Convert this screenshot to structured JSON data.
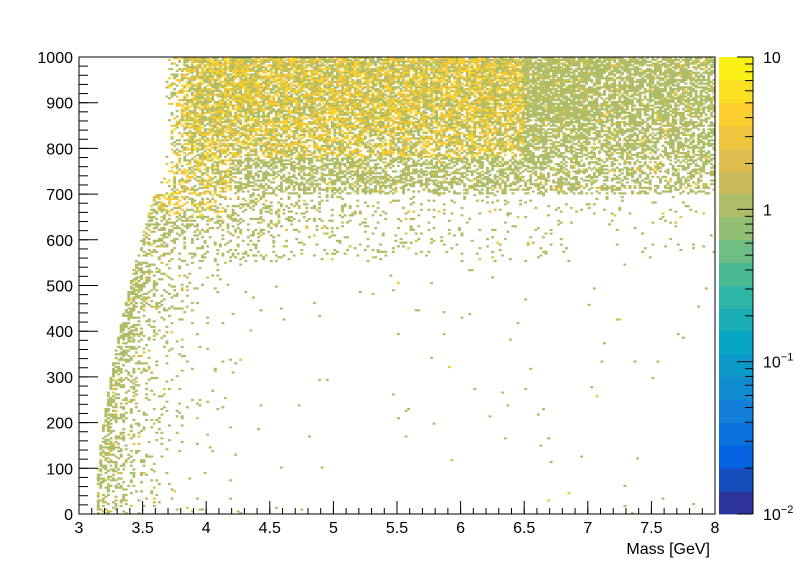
{
  "chart_data": {
    "type": "heatmap",
    "title": "",
    "xlabel": "Mass [GeV]",
    "ylabel": "",
    "xlim": [
      3,
      8
    ],
    "ylim": [
      0,
      1000
    ],
    "x_major_ticks": [
      3,
      3.5,
      4,
      4.5,
      5,
      5.5,
      6,
      6.5,
      7,
      7.5,
      8
    ],
    "x_tick_labels": [
      "3",
      "3.5",
      "4",
      "4.5",
      "5",
      "5.5",
      "6",
      "6.5",
      "7",
      "7.5",
      "8"
    ],
    "y_major_ticks": [
      0,
      100,
      200,
      300,
      400,
      500,
      600,
      700,
      800,
      900,
      1000
    ],
    "y_tick_labels": [
      "0",
      "100",
      "200",
      "300",
      "400",
      "500",
      "600",
      "700",
      "800",
      "900",
      "1000"
    ],
    "z_scale": "log",
    "zlim": [
      0.01,
      10
    ],
    "z_tick_labels": [
      {
        "value": 0.01,
        "mantissa": "10",
        "exponent": "−2"
      },
      {
        "value": 0.1,
        "mantissa": "10",
        "exponent": "−1"
      },
      {
        "value": 1,
        "mantissa": "1",
        "exponent": ""
      },
      {
        "value": 10,
        "mantissa": "10",
        "exponent": ""
      }
    ],
    "colorbar_palette": [
      "#352a87",
      "#0363e1",
      "#1485d4",
      "#06a7c6",
      "#38b99e",
      "#92bf73",
      "#d9ba56",
      "#fcce2e",
      "#f9fb0e"
    ],
    "colorbar_levels": 20,
    "grid": false,
    "legend": "none",
    "density_description": {
      "x_bins": 250,
      "y_bins": 250,
      "typical_cell_content": [
        1,
        3
      ],
      "populated_region": "lower edge follows a threshold rising from about mass 3.15 GeV at y≈0 to about 3.7 GeV at y≈700; bulk of entries at y 700–1000, with sparse scattered entries at low y and high mass"
    }
  }
}
